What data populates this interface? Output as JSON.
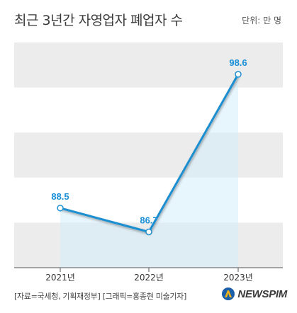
{
  "header": {
    "title": "최근 3년간 자영업자 폐업자 수",
    "unit": "단위: 만 명"
  },
  "footer": {
    "source": "[자료=국세청, 기획재정부] [그래픽=홍종현 미술기자]",
    "brand": "NEWSPIM"
  },
  "colors": {
    "line": "#1f8fd1",
    "area": "#d3ecf9",
    "band": "#ececec",
    "label": "#1a8fd6"
  },
  "chart_data": {
    "type": "line",
    "title": "최근 3년간 자영업자 폐업자 수",
    "unit": "단위: 만 명",
    "categories": [
      "2021년",
      "2022년",
      "2023년"
    ],
    "values": [
      88.5,
      86.7,
      98.6
    ],
    "data_labels": [
      "88.5",
      "86.7",
      "98.6"
    ],
    "ylim": [
      84,
      101
    ],
    "grid": "horizontal bands"
  }
}
